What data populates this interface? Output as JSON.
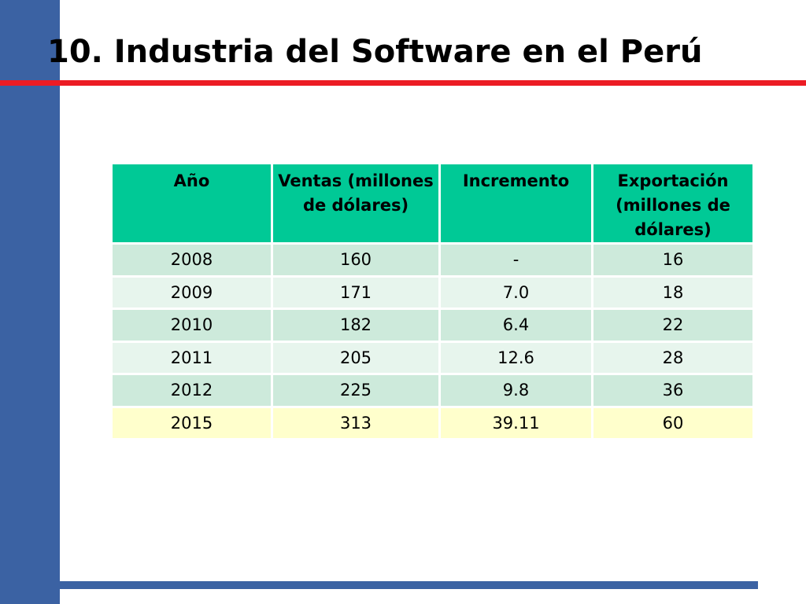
{
  "slide": {
    "title": "10. Industria del Software en el Perú",
    "colors": {
      "left_bar": "#3b62a3",
      "title_rule": "#ec1c24",
      "bottom_rule": "#3b62a3",
      "header_fill": "#00c996",
      "row_fill_a": "#cdeadb",
      "row_fill_b": "#e7f5ed",
      "row_fill_highlight": "#ffffcc"
    }
  },
  "table": {
    "headers": [
      "Año",
      "Ventas (millones de dólares)",
      "Incremento",
      "Exportación (millones de dólares)"
    ],
    "rows": [
      [
        "2008",
        "160",
        "-",
        "16"
      ],
      [
        "2009",
        "171",
        "7.0",
        "18"
      ],
      [
        "2010",
        "182",
        "6.4",
        "22"
      ],
      [
        "2011",
        "205",
        "12.6",
        "28"
      ],
      [
        "2012",
        "225",
        "9.8",
        "36"
      ],
      [
        "2015",
        "313",
        "39.11",
        "60"
      ]
    ],
    "highlighted_row_year": "2015"
  }
}
